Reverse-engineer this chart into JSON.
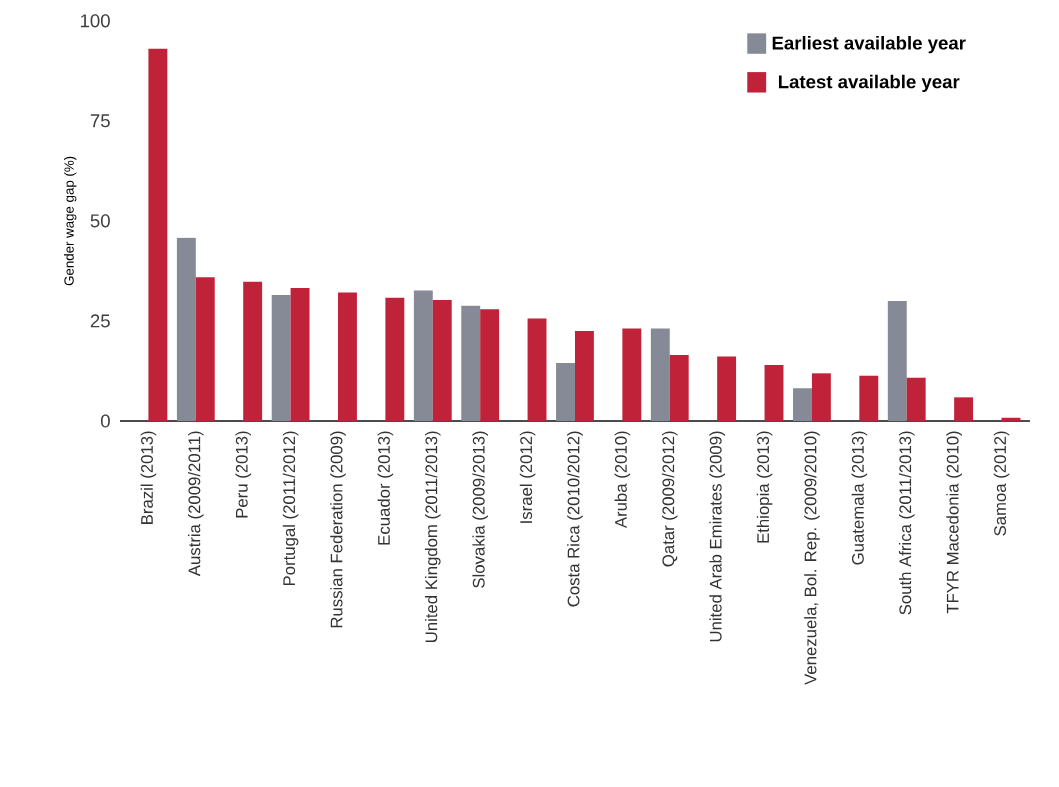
{
  "chart_data": {
    "type": "bar",
    "ylabel": "Gender wage gap (%)",
    "categories": [
      "Brazil (2013)",
      "Austria (2009/2011)",
      "Peru (2013)",
      "Portugal (2011/2012)",
      "Russian Federation (2009)",
      "Ecuador (2013)",
      "United Kingdom (2011/2013)",
      "Slovakia (2009/2013)",
      "Israel (2012)",
      "Costa Rica (2010/2012)",
      "Aruba (2010)",
      "Qatar (2009/2012)",
      "United Arab Emirates (2009)",
      "Ethiopia (2013)",
      "Venezuela, Bol. Rep. (2009/2010)",
      "Guatemala (2013)",
      "South Africa (2011/2013)",
      "TFYR Macedonia (2010)",
      "Samoa (2012)"
    ],
    "series": [
      {
        "name": "Earliest available year",
        "color": "#868a96",
        "values": [
          null,
          45.8,
          null,
          31.5,
          null,
          null,
          32.6,
          28.8,
          null,
          14.5,
          null,
          23.1,
          null,
          null,
          8.2,
          null,
          30.0,
          null,
          null
        ]
      },
      {
        "name": "Latest available year",
        "color": "#c0223a",
        "values": [
          93,
          35.9,
          34.8,
          33.2,
          32.1,
          30.8,
          30.2,
          27.9,
          25.6,
          22.5,
          23.1,
          16.5,
          16.1,
          14.0,
          11.9,
          11.3,
          10.8,
          5.9,
          0.8
        ]
      }
    ],
    "ylim": [
      0,
      100
    ],
    "yticks": [
      0,
      25,
      50,
      75,
      100
    ],
    "legend": "top right"
  }
}
